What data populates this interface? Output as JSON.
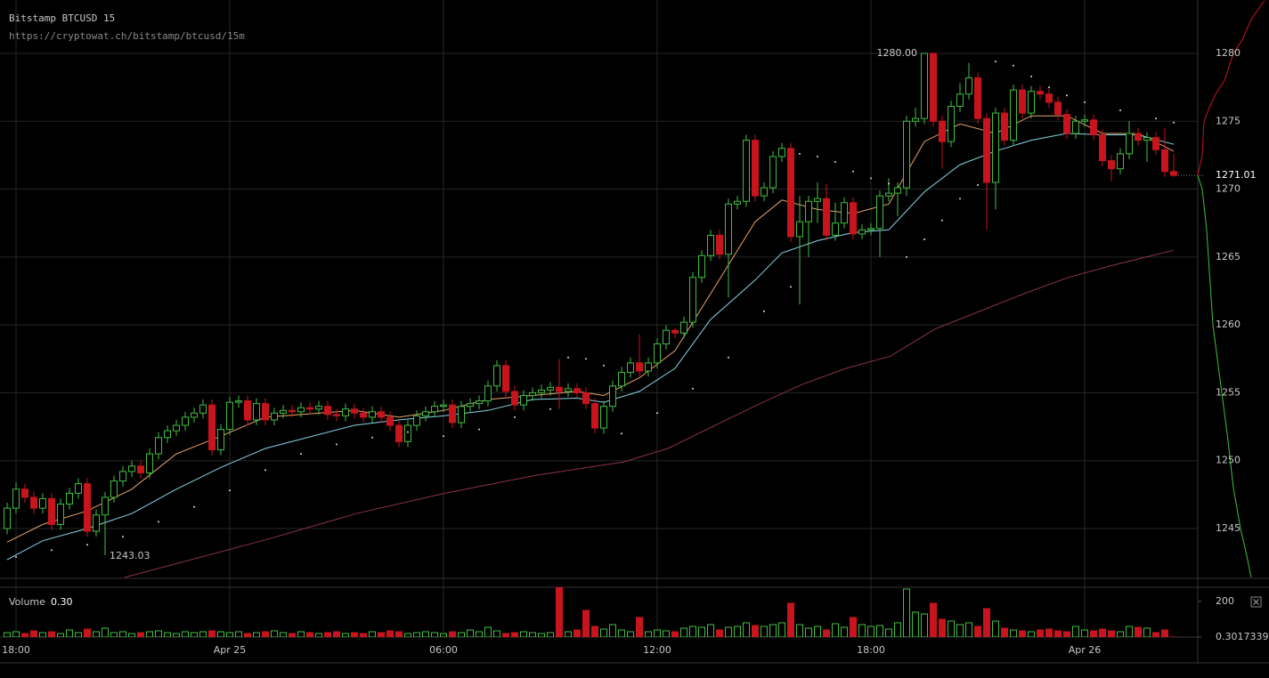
{
  "header": {
    "title": "Bitstamp BTCUSD 15",
    "url": "https://cryptowat.ch/bitstamp/btcusd/15m"
  },
  "chart_data": {
    "type": "candlestick",
    "up_color": "#3fbf3f",
    "down_color": "#c8141c",
    "xlim": [
      -0.45,
      33.175
    ],
    "xticks": [
      {
        "value": 0,
        "label": "18:00"
      },
      {
        "value": 6,
        "label": "Apr 25"
      },
      {
        "value": 12,
        "label": "06:00"
      },
      {
        "value": 18,
        "label": "12:00"
      },
      {
        "value": 24,
        "label": "18:00"
      },
      {
        "value": 30,
        "label": "Apr 26"
      }
    ],
    "ylim": [
      1241.33,
      1283.93
    ],
    "yticks": [
      1245,
      1250,
      1255,
      1260,
      1265,
      1270,
      1275,
      1280
    ],
    "grid": true,
    "x": [
      -0.25,
      0,
      0.25,
      0.5,
      0.75,
      1,
      1.25,
      1.5,
      1.75,
      2,
      2.25,
      2.5,
      2.75,
      3,
      3.25,
      3.5,
      3.75,
      4,
      4.25,
      4.5,
      4.75,
      5,
      5.25,
      5.5,
      5.75,
      6,
      6.25,
      6.5,
      6.75,
      7,
      7.25,
      7.5,
      7.75,
      8,
      8.25,
      8.5,
      8.75,
      9,
      9.25,
      9.5,
      9.75,
      10,
      10.25,
      10.5,
      10.75,
      11,
      11.25,
      11.5,
      11.75,
      12,
      12.25,
      12.5,
      12.75,
      13,
      13.25,
      13.5,
      13.75,
      14,
      14.25,
      14.5,
      14.75,
      15,
      15.25,
      15.5,
      15.75,
      16,
      16.25,
      16.5,
      16.75,
      17,
      17.25,
      17.5,
      17.75,
      18,
      18.25,
      18.5,
      18.75,
      19,
      19.25,
      19.5,
      19.75,
      20,
      20.25,
      20.5,
      20.75,
      21,
      21.25,
      21.5,
      21.75,
      22,
      22.25,
      22.5,
      22.75,
      23,
      23.25,
      23.5,
      23.75,
      24,
      24.25,
      24.5,
      24.75,
      25,
      25.25,
      25.5,
      25.75,
      26,
      26.25,
      26.5,
      26.75,
      27,
      27.25,
      27.5,
      27.75,
      28,
      28.25,
      28.5,
      28.75,
      29,
      29.25,
      29.5,
      29.75,
      30,
      30.25,
      30.5,
      30.75,
      31,
      31.25,
      31.5,
      31.75,
      32,
      32.25,
      32.5
    ],
    "open": [
      1245.0,
      1246.5,
      1247.9,
      1247.3,
      1246.5,
      1247.2,
      1245.3,
      1246.8,
      1247.6,
      1248.3,
      1244.8,
      1246.0,
      1247.3,
      1248.5,
      1249.2,
      1249.6,
      1249.1,
      1250.5,
      1251.7,
      1252.2,
      1252.6,
      1253.2,
      1253.5,
      1254.1,
      1250.8,
      1252.3,
      1254.3,
      1254.4,
      1253.0,
      1254.2,
      1253.0,
      1253.5,
      1253.7,
      1253.6,
      1253.9,
      1253.8,
      1254.0,
      1253.4,
      1253.3,
      1253.8,
      1253.5,
      1253.2,
      1253.6,
      1253.2,
      1252.6,
      1251.4,
      1252.6,
      1253.3,
      1253.6,
      1254.0,
      1254.1,
      1252.8,
      1254.0,
      1254.2,
      1254.4,
      1255.5,
      1257.0,
      1255.1,
      1254.1,
      1254.8,
      1255.0,
      1255.2,
      1255.4,
      1255.1,
      1255.3,
      1255.0,
      1254.2,
      1252.4,
      1254.0,
      1255.5,
      1256.5,
      1257.2,
      1256.6,
      1257.2,
      1258.6,
      1259.6,
      1259.4,
      1260.2,
      1263.5,
      1265.1,
      1266.6,
      1265.2,
      1268.9,
      1269.1,
      1273.6,
      1269.5,
      1270.1,
      1272.4,
      1273.0,
      1266.5,
      1267.6,
      1269.1,
      1269.3,
      1266.6,
      1267.5,
      1269.0,
      1266.7,
      1267.0,
      1267.1,
      1269.5,
      1269.7,
      1270.1,
      1275.0,
      1275.2,
      1280.0,
      1275.0,
      1273.5,
      1276.1,
      1277.0,
      1278.2,
      1275.2,
      1270.5,
      1275.6,
      1273.6,
      1277.3,
      1275.6,
      1277.2,
      1277.0,
      1276.4,
      1275.5,
      1274.1,
      1275.0,
      1275.1,
      1274.0,
      1272.1,
      1271.5,
      1272.6,
      1274.1,
      1273.6,
      1273.8,
      1272.9,
      1271.3
    ],
    "high": [
      1246.9,
      1248.4,
      1248.3,
      1247.7,
      1247.6,
      1247.6,
      1247.2,
      1248.0,
      1248.7,
      1248.7,
      1246.4,
      1247.7,
      1248.9,
      1249.6,
      1250.0,
      1250.0,
      1250.9,
      1252.1,
      1252.6,
      1253.0,
      1253.6,
      1253.9,
      1254.5,
      1254.5,
      1252.7,
      1254.7,
      1254.8,
      1254.8,
      1254.6,
      1254.6,
      1253.9,
      1254.1,
      1254.1,
      1254.3,
      1254.3,
      1254.4,
      1254.4,
      1253.8,
      1254.2,
      1254.2,
      1253.9,
      1254.0,
      1254.0,
      1253.6,
      1253.0,
      1253.0,
      1253.7,
      1254.0,
      1254.4,
      1254.5,
      1254.5,
      1254.4,
      1254.6,
      1254.8,
      1255.9,
      1257.4,
      1257.4,
      1255.5,
      1255.2,
      1255.4,
      1255.6,
      1255.8,
      1257.5,
      1255.7,
      1255.7,
      1255.4,
      1254.6,
      1254.4,
      1255.9,
      1256.9,
      1257.6,
      1259.3,
      1257.6,
      1259.0,
      1260.0,
      1259.8,
      1260.6,
      1263.9,
      1265.5,
      1267.0,
      1267.0,
      1269.3,
      1269.5,
      1274.0,
      1274.0,
      1270.5,
      1272.8,
      1273.4,
      1273.4,
      1269.5,
      1269.5,
      1270.5,
      1270.4,
      1269.0,
      1269.4,
      1269.4,
      1267.4,
      1267.5,
      1269.9,
      1270.8,
      1270.5,
      1275.4,
      1276.0,
      1280.0,
      1280.0,
      1275.4,
      1276.5,
      1277.8,
      1279.3,
      1278.6,
      1275.6,
      1276.0,
      1276.0,
      1277.7,
      1277.7,
      1277.6,
      1277.6,
      1277.4,
      1276.8,
      1275.9,
      1275.4,
      1275.5,
      1275.5,
      1274.4,
      1272.5,
      1273.0,
      1275.0,
      1274.5,
      1274.2,
      1274.2,
      1274.5,
      1272.6
    ],
    "low": [
      1244.6,
      1246.1,
      1246.9,
      1246.1,
      1246.1,
      1244.9,
      1244.9,
      1246.4,
      1247.2,
      1244.4,
      1244.4,
      1243.03,
      1246.9,
      1248.1,
      1248.8,
      1248.7,
      1248.7,
      1250.1,
      1251.3,
      1251.8,
      1252.2,
      1252.8,
      1253.1,
      1250.4,
      1250.4,
      1251.9,
      1253.9,
      1252.6,
      1252.6,
      1252.6,
      1252.6,
      1253.1,
      1253.2,
      1253.2,
      1253.4,
      1253.4,
      1253.0,
      1252.9,
      1252.9,
      1253.1,
      1252.8,
      1252.8,
      1252.8,
      1252.2,
      1251.0,
      1251.0,
      1252.2,
      1252.9,
      1253.2,
      1253.6,
      1252.4,
      1252.4,
      1253.6,
      1253.8,
      1254.0,
      1255.1,
      1254.7,
      1253.7,
      1253.7,
      1254.4,
      1254.6,
      1254.8,
      1253.8,
      1254.7,
      1254.6,
      1253.8,
      1252.0,
      1252.0,
      1253.6,
      1255.1,
      1256.1,
      1256.2,
      1256.2,
      1256.8,
      1258.2,
      1259.0,
      1259.0,
      1259.8,
      1263.1,
      1264.7,
      1264.8,
      1262.0,
      1268.5,
      1268.7,
      1269.1,
      1269.1,
      1269.7,
      1272.0,
      1266.1,
      1261.5,
      1265.0,
      1267.5,
      1266.2,
      1266.2,
      1267.1,
      1266.3,
      1266.3,
      1266.6,
      1265.0,
      1269.1,
      1268.0,
      1269.5,
      1274.6,
      1274.8,
      1274.6,
      1271.5,
      1273.1,
      1275.7,
      1276.6,
      1274.8,
      1267.0,
      1268.5,
      1273.2,
      1273.2,
      1275.2,
      1275.2,
      1276.6,
      1276.0,
      1275.1,
      1273.7,
      1273.7,
      1274.6,
      1273.6,
      1271.7,
      1270.6,
      1271.1,
      1272.2,
      1273.2,
      1272.0,
      1272.5,
      1270.9,
      1270.9
    ],
    "close": [
      1246.5,
      1247.9,
      1247.3,
      1246.5,
      1247.2,
      1245.3,
      1246.8,
      1247.6,
      1248.3,
      1244.8,
      1246.0,
      1247.3,
      1248.5,
      1249.2,
      1249.6,
      1249.1,
      1250.5,
      1251.7,
      1252.2,
      1252.6,
      1253.2,
      1253.5,
      1254.1,
      1250.8,
      1252.3,
      1254.3,
      1254.4,
      1253.0,
      1254.2,
      1253.0,
      1253.5,
      1253.7,
      1253.6,
      1253.9,
      1253.8,
      1254.0,
      1253.4,
      1253.3,
      1253.8,
      1253.5,
      1253.2,
      1253.6,
      1253.2,
      1252.6,
      1251.4,
      1252.6,
      1253.3,
      1253.6,
      1254.0,
      1254.1,
      1252.8,
      1254.0,
      1254.2,
      1254.4,
      1255.5,
      1257.0,
      1255.1,
      1254.1,
      1254.8,
      1255.0,
      1255.2,
      1255.4,
      1255.1,
      1255.3,
      1255.0,
      1254.2,
      1252.4,
      1254.0,
      1255.5,
      1256.5,
      1257.2,
      1256.6,
      1257.2,
      1258.6,
      1259.6,
      1259.4,
      1260.2,
      1263.5,
      1265.1,
      1266.6,
      1265.2,
      1268.9,
      1269.1,
      1273.6,
      1269.5,
      1270.1,
      1272.4,
      1273.0,
      1266.5,
      1267.6,
      1269.1,
      1269.3,
      1266.6,
      1267.5,
      1269.0,
      1266.7,
      1267.0,
      1267.1,
      1269.5,
      1269.7,
      1270.1,
      1275.0,
      1275.2,
      1280.0,
      1275.0,
      1273.5,
      1276.1,
      1277.0,
      1278.2,
      1275.2,
      1270.5,
      1275.6,
      1273.6,
      1277.3,
      1275.6,
      1277.2,
      1277.0,
      1276.4,
      1275.5,
      1274.1,
      1275.0,
      1275.1,
      1274.0,
      1272.1,
      1271.5,
      1272.6,
      1274.1,
      1273.6,
      1273.8,
      1272.9,
      1271.3,
      1271.01
    ],
    "extremes": {
      "high": {
        "value": 1280.0,
        "label": "1280.00"
      },
      "low": {
        "value": 1243.03,
        "label": "1243.03"
      }
    },
    "last_price": {
      "value": 1271.01,
      "label": "1271.01"
    },
    "series": [
      {
        "color": "#e8a36a",
        "x": [
          -0.25,
          0.75,
          2,
          3.25,
          4.5,
          5.75,
          7,
          9.5,
          10.75,
          12,
          13.25,
          14.5,
          15.75,
          16.5,
          17.5,
          18.5,
          19.5,
          20.75,
          21.5,
          22.5,
          23.5,
          24.5,
          25.5,
          26.5,
          27.5,
          28.5,
          29.5,
          30.5,
          31.5,
          32.5
        ],
        "values": [
          1244.0,
          1245.3,
          1246.3,
          1247.9,
          1250.5,
          1251.8,
          1253.2,
          1253.7,
          1253.2,
          1253.7,
          1254.5,
          1254.8,
          1255.1,
          1254.8,
          1256.1,
          1258.1,
          1262.3,
          1267.6,
          1269.2,
          1268.5,
          1268.2,
          1268.9,
          1273.5,
          1274.8,
          1274.1,
          1275.4,
          1275.4,
          1274.1,
          1274.1,
          1272.8
        ]
      },
      {
        "color": "#86d6e6",
        "x": [
          -0.25,
          0.75,
          2,
          3.25,
          4.5,
          5.75,
          7,
          9.5,
          10.75,
          12,
          13.25,
          14.5,
          15.75,
          16.5,
          17.5,
          18.5,
          19.5,
          20.75,
          21.5,
          22.5,
          23.5,
          24.5,
          25.5,
          26.5,
          27.5,
          28.5,
          29.5,
          30.5,
          31.5,
          32.5
        ],
        "values": [
          1242.7,
          1244.1,
          1245.0,
          1246.1,
          1247.9,
          1249.5,
          1250.9,
          1252.6,
          1253.0,
          1253.3,
          1253.7,
          1254.5,
          1254.6,
          1254.3,
          1255.1,
          1256.8,
          1260.4,
          1263.3,
          1265.3,
          1266.2,
          1266.8,
          1267.0,
          1269.8,
          1271.8,
          1272.8,
          1273.6,
          1274.1,
          1274.0,
          1274.0,
          1273.3
        ]
      },
      {
        "color": "#8c3444",
        "x": [
          3.05,
          7.05,
          9.55,
          12.05,
          14.55,
          17.05,
          18.3,
          19.55,
          20.8,
          22.05,
          23.3,
          24.55,
          25.8,
          27.05,
          28.3,
          29.55,
          30.8,
          32.5
        ],
        "values": [
          1241.4,
          1244.2,
          1246.1,
          1247.6,
          1248.9,
          1249.9,
          1250.9,
          1252.5,
          1254.1,
          1255.6,
          1256.8,
          1257.7,
          1259.7,
          1261.0,
          1262.3,
          1263.5,
          1264.4,
          1265.5
        ]
      }
    ],
    "sar": {
      "color": "#e0e0e0",
      "x": [
        0,
        1,
        2,
        3,
        4,
        5,
        6,
        7,
        8,
        9,
        10,
        11,
        12,
        13,
        14,
        15,
        15.5,
        16,
        16.5,
        17,
        18,
        19,
        20,
        21,
        21.75,
        22,
        22.5,
        23,
        23.5,
        24,
        24.5,
        25,
        25.5,
        26,
        26.5,
        27,
        27.5,
        28,
        28.5,
        29,
        29.5,
        30,
        31,
        32,
        32.5
      ],
      "values": [
        1242.9,
        1243.4,
        1243.8,
        1244.4,
        1245.5,
        1246.6,
        1247.8,
        1249.3,
        1250.5,
        1251.2,
        1251.7,
        1252.1,
        1251.8,
        1252.3,
        1253.2,
        1253.8,
        1257.6,
        1257.5,
        1257.0,
        1252.0,
        1253.5,
        1255.3,
        1257.6,
        1261.0,
        1262.8,
        1272.6,
        1272.4,
        1272.0,
        1271.3,
        1270.8,
        1270.4,
        1265.0,
        1266.3,
        1267.7,
        1269.3,
        1270.3,
        1279.4,
        1279.1,
        1278.3,
        1277.5,
        1276.9,
        1276.4,
        1275.8,
        1275.2,
        1274.9
      ]
    },
    "depth": {
      "xlim": [
        0,
        80
      ],
      "asks": {
        "color": "#c8141c",
        "amount": [
          0,
          5,
          7,
          13,
          20,
          30,
          35,
          40,
          50,
          60,
          75
        ],
        "price": [
          1271.01,
          1272.5,
          1275,
          1276,
          1277,
          1278,
          1279,
          1280,
          1281,
          1282.5,
          1283.9
        ]
      },
      "bids": {
        "color": "#3fbf3f",
        "amount": [
          0,
          5,
          10,
          13,
          17,
          25,
          33,
          40,
          48,
          55,
          60
        ],
        "price": [
          1271.01,
          1270,
          1267,
          1264,
          1260,
          1256,
          1252,
          1248,
          1245,
          1243,
          1241.4
        ]
      }
    },
    "volume": {
      "title": "Volume",
      "last": {
        "value": 0.3017339,
        "label": "0.30"
      },
      "ylim": [
        0,
        280
      ],
      "yticks": [
        0.3017339,
        200
      ],
      "values": [
        25,
        30,
        20,
        35,
        25,
        30,
        20,
        40,
        25,
        45,
        30,
        50,
        25,
        30,
        20,
        25,
        30,
        35,
        25,
        20,
        30,
        25,
        30,
        35,
        30,
        25,
        30,
        20,
        25,
        30,
        35,
        25,
        20,
        30,
        25,
        20,
        25,
        30,
        20,
        25,
        20,
        30,
        25,
        35,
        30,
        20,
        25,
        30,
        25,
        20,
        30,
        25,
        40,
        30,
        55,
        35,
        20,
        25,
        30,
        25,
        20,
        25,
        300,
        30,
        40,
        150,
        60,
        45,
        70,
        40,
        30,
        110,
        30,
        40,
        35,
        30,
        50,
        60,
        55,
        70,
        40,
        55,
        60,
        80,
        65,
        60,
        70,
        80,
        190,
        70,
        50,
        60,
        40,
        75,
        55,
        110,
        70,
        60,
        65,
        45,
        80,
        270,
        140,
        130,
        190,
        100,
        90,
        70,
        80,
        60,
        160,
        90,
        50,
        40,
        35,
        30,
        40,
        45,
        35,
        30,
        60,
        40,
        35,
        45,
        35,
        30,
        60,
        55,
        50,
        25,
        40,
        0.3017339
      ]
    }
  }
}
